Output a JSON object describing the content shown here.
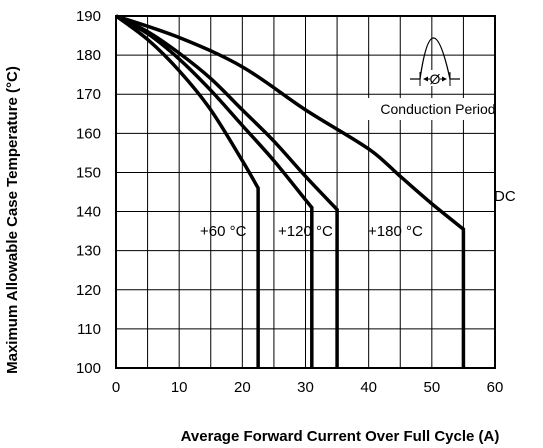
{
  "chart_data": {
    "type": "line",
    "xlabel": "Average Forward Current Over Full Cycle (A)",
    "ylabel": "Maximum Allowable Case Temperature (°C)",
    "xlim": [
      0,
      60
    ],
    "ylim": [
      100,
      190
    ],
    "xticks": [
      0,
      10,
      20,
      30,
      40,
      50,
      60
    ],
    "yticks": [
      100,
      110,
      120,
      130,
      140,
      150,
      160,
      170,
      180,
      190
    ],
    "grid": true,
    "series": [
      {
        "name": "+60 °C",
        "points": [
          [
            0,
            190
          ],
          [
            5,
            184
          ],
          [
            10,
            176
          ],
          [
            15,
            166
          ],
          [
            20,
            153
          ],
          [
            22.5,
            146
          ],
          [
            22.5,
            100
          ]
        ]
      },
      {
        "name": "+120 °C",
        "points": [
          [
            0,
            190
          ],
          [
            5,
            185.5
          ],
          [
            10,
            179
          ],
          [
            15,
            171
          ],
          [
            20,
            162
          ],
          [
            25,
            153
          ],
          [
            30,
            143
          ],
          [
            31,
            141
          ],
          [
            31,
            100
          ]
        ]
      },
      {
        "name": "+180 °C",
        "points": [
          [
            0,
            190
          ],
          [
            5,
            186
          ],
          [
            10,
            180.5
          ],
          [
            15,
            174
          ],
          [
            20,
            166
          ],
          [
            25,
            158
          ],
          [
            30,
            149
          ],
          [
            35,
            140.5
          ],
          [
            35,
            100
          ]
        ]
      },
      {
        "name": "DC",
        "points": [
          [
            0,
            190
          ],
          [
            10,
            184.5
          ],
          [
            20,
            177
          ],
          [
            30,
            166
          ],
          [
            40,
            156
          ],
          [
            45,
            149
          ],
          [
            50,
            142
          ],
          [
            55,
            135.5
          ],
          [
            55,
            100
          ]
        ]
      }
    ],
    "annotations": {
      "inset_label": "Conduction Period",
      "inset_symbol": "Ø"
    }
  }
}
